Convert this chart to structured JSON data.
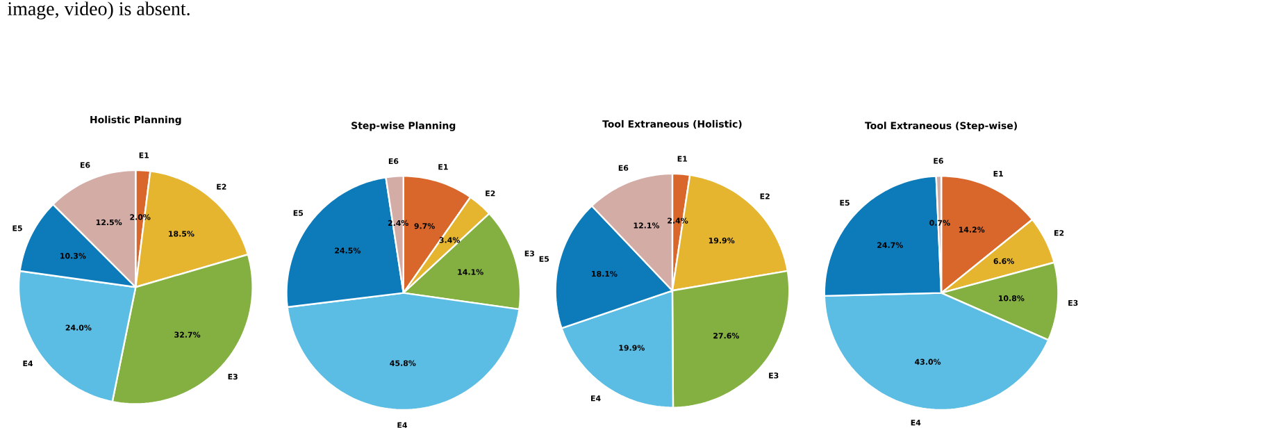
{
  "chart_data": [
    {
      "type": "pie",
      "title": "Holistic Planning",
      "annotations": [
        "image, video) is absent."
      ],
      "categories": [
        "E1",
        "E2",
        "E3",
        "E4",
        "E5",
        "E6"
      ],
      "values": [
        2.0,
        18.5,
        32.7,
        24.0,
        10.3,
        12.5
      ],
      "colors": [
        "#d9662a",
        "#e6b530",
        "#84b042",
        "#5bbde3",
        "#0d7bba",
        "#d4aca6"
      ],
      "value_labels": [
        "2.0%",
        "18.5%",
        "32.7%",
        "24.0%",
        "10.3%",
        "12.5%"
      ]
    },
    {
      "type": "pie",
      "title": "Step-wise Planning",
      "categories": [
        "E1",
        "E2",
        "E3",
        "E4",
        "E5",
        "E6"
      ],
      "values": [
        9.7,
        3.4,
        14.1,
        45.8,
        24.5,
        2.4
      ],
      "colors": [
        "#d9662a",
        "#e6b530",
        "#84b042",
        "#5bbde3",
        "#0d7bba",
        "#d4aca6"
      ],
      "value_labels": [
        "9.7%",
        "3.4%",
        "14.1%",
        "45.8%",
        "24.5%",
        "2.4%"
      ]
    },
    {
      "type": "pie",
      "title": "Tool Extraneous (Holistic)",
      "categories": [
        "E1",
        "E2",
        "E3",
        "E4",
        "E5",
        "E6"
      ],
      "values": [
        2.4,
        19.9,
        27.6,
        19.9,
        18.1,
        12.1
      ],
      "colors": [
        "#d9662a",
        "#e6b530",
        "#84b042",
        "#5bbde3",
        "#0d7bba",
        "#d4aca6"
      ],
      "value_labels": [
        "2.4%",
        "19.9%",
        "27.6%",
        "19.9%",
        "18.1%",
        "12.1%"
      ]
    },
    {
      "type": "pie",
      "title": "Tool Extraneous (Step-wise)",
      "categories": [
        "E1",
        "E2",
        "E3",
        "E4",
        "E5",
        "E6"
      ],
      "values": [
        14.2,
        6.6,
        10.8,
        43.0,
        24.7,
        0.7
      ],
      "colors": [
        "#d9662a",
        "#e6b530",
        "#84b042",
        "#5bbde3",
        "#0d7bba",
        "#d4aca6"
      ],
      "value_labels": [
        "14.2%",
        "6.6%",
        "10.8%",
        "43.0%",
        "24.7%",
        "0.7%"
      ]
    }
  ]
}
